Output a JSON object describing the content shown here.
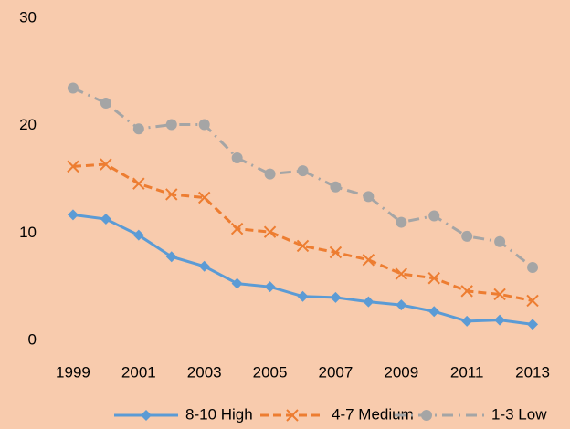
{
  "chart_data": {
    "type": "line",
    "x": [
      1999,
      2000,
      2001,
      2002,
      2003,
      2004,
      2005,
      2006,
      2007,
      2008,
      2009,
      2010,
      2011,
      2012,
      2013
    ],
    "xlim": [
      1998.5,
      2013.5
    ],
    "xticks": [
      1999,
      2001,
      2003,
      2005,
      2007,
      2009,
      2011,
      2013
    ],
    "ylim": [
      0,
      30
    ],
    "yticks": [
      0,
      10,
      20,
      30
    ],
    "grid": false,
    "legend": "bottom",
    "series": [
      {
        "name": "8-10 High",
        "color": "#5b9bd5",
        "marker": "diamond",
        "dash": "solid",
        "values": [
          11.7,
          11.3,
          9.8,
          7.8,
          6.9,
          5.3,
          5.0,
          4.1,
          4.0,
          3.6,
          3.3,
          2.7,
          1.8,
          1.9,
          1.5
        ]
      },
      {
        "name": "4-7 Medium",
        "color": "#ed7d31",
        "marker": "x",
        "dash": "dash",
        "values": [
          16.2,
          16.4,
          14.6,
          13.6,
          13.3,
          10.4,
          10.1,
          8.8,
          8.2,
          7.5,
          6.2,
          5.8,
          4.6,
          4.3,
          3.7
        ]
      },
      {
        "name": "1-3 Low",
        "color": "#a5a5a5",
        "marker": "circle",
        "dash": "dashdot",
        "values": [
          23.5,
          22.1,
          19.7,
          20.1,
          20.1,
          17.0,
          15.5,
          15.8,
          14.3,
          13.4,
          11.0,
          11.6,
          9.7,
          9.2,
          6.8
        ]
      }
    ]
  }
}
